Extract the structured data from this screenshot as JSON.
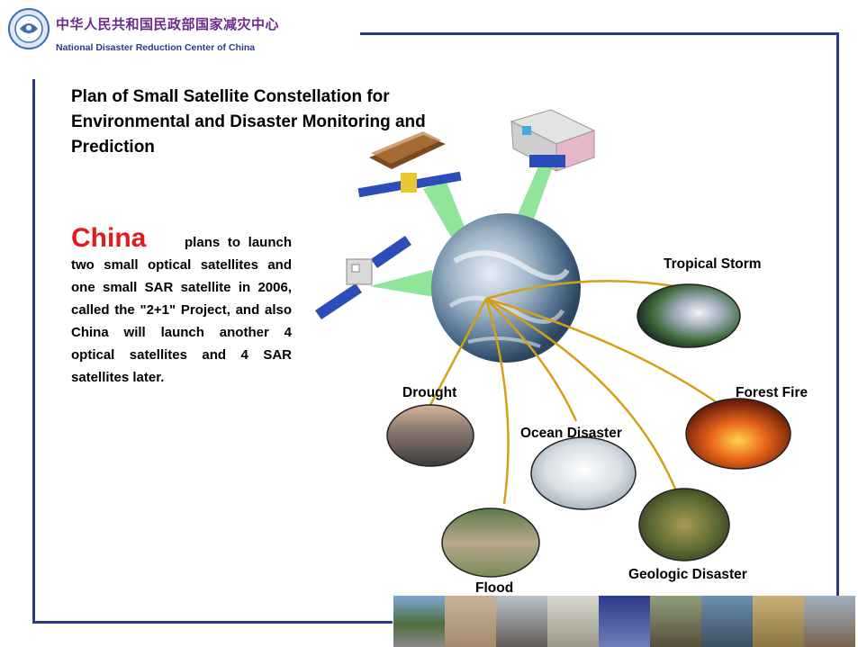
{
  "header": {
    "org_cn": "中华人民共和国民政部国家减灾中心",
    "org_en": "National Disaster Reduction Center of China"
  },
  "title": "Plan of Small Satellite Constellation for Environmental and Disaster Monitoring and Prediction",
  "description": {
    "highlight": "China",
    "text": "plans to launch two small optical satellites and one small SAR satellite in 2006, called the \"2+1\" Project, and also China will launch another 4 optical satellites and 4 SAR satellites later."
  },
  "disasters": {
    "tropical_storm": "Tropical Storm",
    "drought": "Drought",
    "forest_fire": "Forest Fire",
    "ocean_disaster": "Ocean Disaster",
    "flood": "Flood",
    "geologic_disaster": "Geologic Disaster"
  },
  "colors": {
    "frame": "#2b3a8c",
    "org_cn": "#6a2c8f",
    "highlight": "#e41b1b",
    "link_line": "#d4a017",
    "beam": "#7ee08a"
  }
}
